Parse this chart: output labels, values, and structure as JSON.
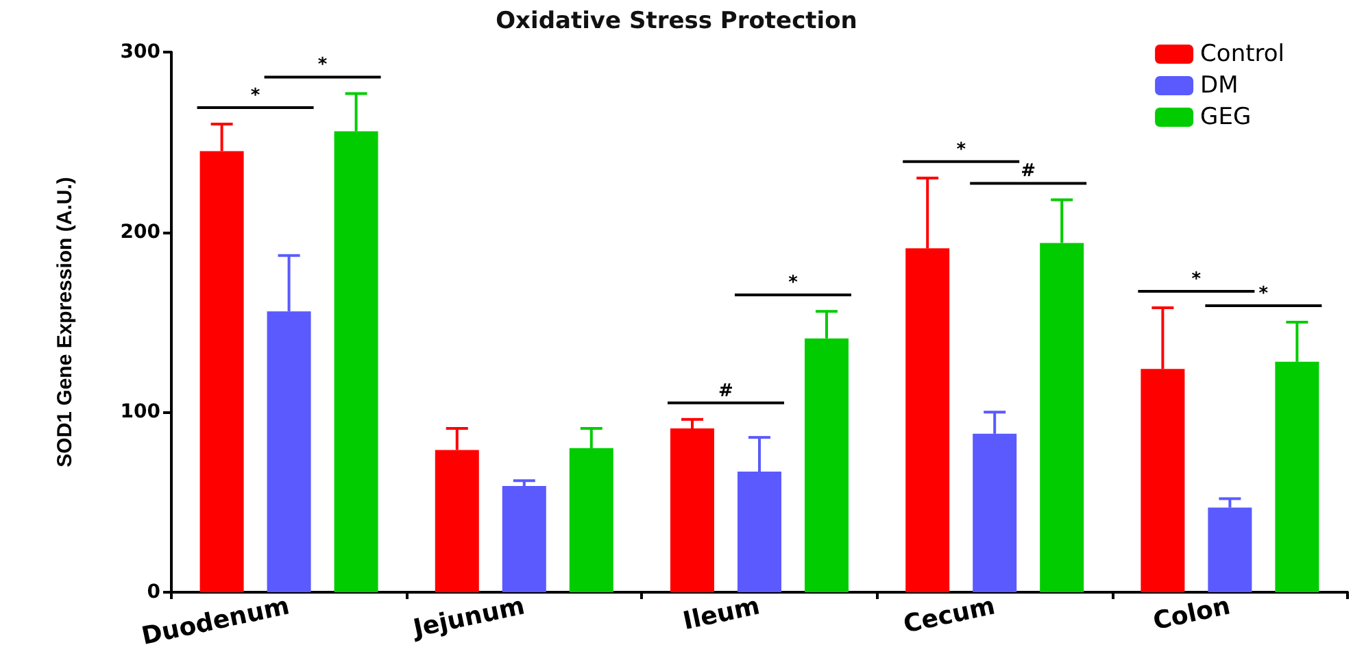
{
  "chart_data": {
    "type": "bar",
    "title": "Oxidative Stress Protection",
    "ylabel": "SOD1 Gene Expression (A.U.)",
    "categories": [
      "Duodenum",
      "Jejunum",
      "Ileum",
      "Cecum",
      "Colon"
    ],
    "series": [
      {
        "name": "Control",
        "color": "#ff0000",
        "values": [
          245,
          79,
          91,
          191,
          124
        ],
        "errors": [
          [
            245,
            260
          ],
          [
            79,
            91
          ],
          [
            91,
            96
          ],
          [
            191,
            230
          ],
          [
            124,
            158
          ]
        ]
      },
      {
        "name": "DM",
        "color": "#5a5aff",
        "values": [
          156,
          59,
          67,
          88,
          47
        ],
        "errors": [
          [
            156,
            187
          ],
          [
            59,
            62
          ],
          [
            67,
            86
          ],
          [
            88,
            100
          ],
          [
            47,
            52
          ]
        ]
      },
      {
        "name": "GEG",
        "color": "#00cc00",
        "values": [
          256,
          80,
          141,
          194,
          128
        ],
        "errors": [
          [
            256,
            277
          ],
          [
            80,
            91
          ],
          [
            141,
            156
          ],
          [
            194,
            218
          ],
          [
            128,
            150
          ]
        ]
      }
    ],
    "annotations": [
      "*",
      "*",
      "#",
      "*",
      "*",
      "#",
      "*",
      "*"
    ],
    "ylim": [
      0,
      300
    ],
    "yticks": [
      0,
      100,
      200,
      300
    ],
    "grid": false,
    "legend": "top right"
  }
}
